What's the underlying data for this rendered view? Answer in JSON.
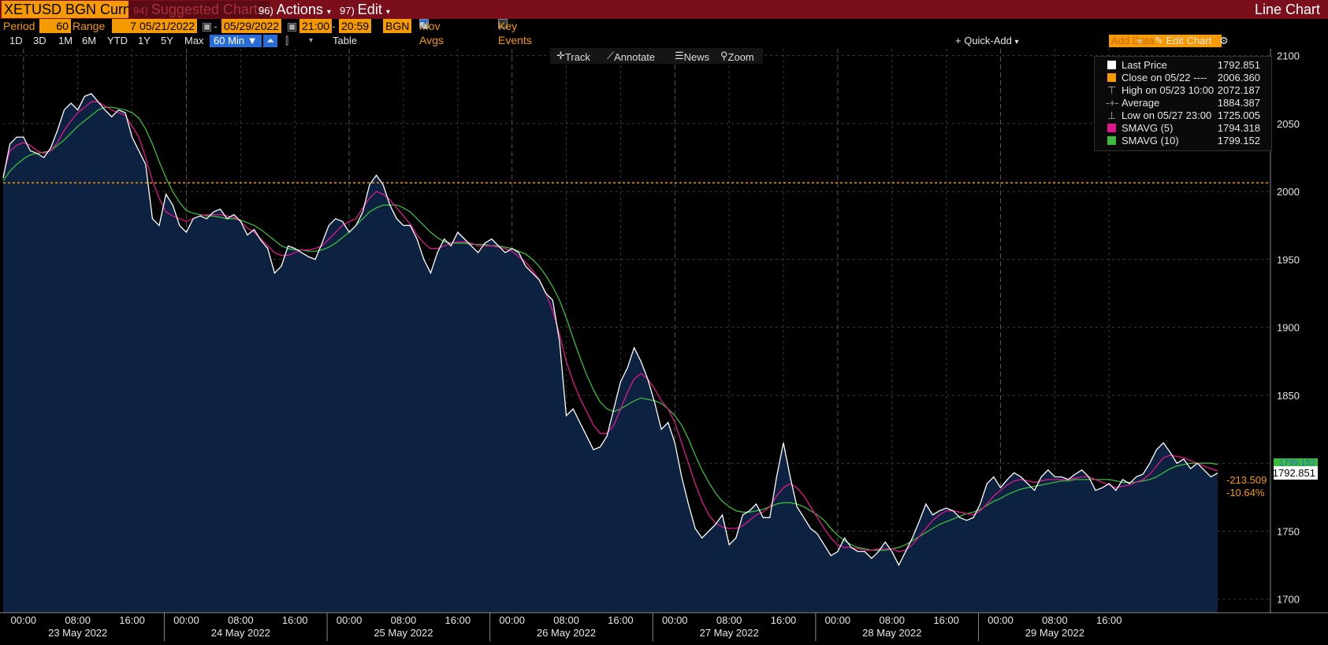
{
  "header": {
    "ticker": "XETUSD BGN Curncy",
    "suggested_num": "94)",
    "suggested": "Suggested Charts",
    "actions_num": "96)",
    "actions": "Actions",
    "edit_num": "97)",
    "edit": "Edit",
    "chart_type": "Line Chart"
  },
  "controls": {
    "period_label": "Period",
    "period_value": "60",
    "range_label": "Range",
    "range_value": "7",
    "start_date": "05/21/2022",
    "end_date": "05/29/2022",
    "start_time": "21:00",
    "end_time": "20:59",
    "source": "BGN",
    "mov_avgs": "Mov Avgs",
    "key_events": "Key Events"
  },
  "timeframes": [
    "1D",
    "3D",
    "1M",
    "6M",
    "YTD",
    "1Y",
    "5Y",
    "Max"
  ],
  "interval": "60 Min",
  "table_label": "Table",
  "quick_add": "+ Quick-Add",
  "add_data_placeholder": "Add Data",
  "edit_chart": "Edit Chart",
  "chart_toolbar": [
    "Track",
    "Annotate",
    "News",
    "Zoom"
  ],
  "legend": [
    {
      "name": "Last Price",
      "value": "1792.851",
      "color": "#ffffff"
    },
    {
      "name": "Close on 05/22 ----",
      "value": "2006.360",
      "color": "#f59a00"
    },
    {
      "name": "High on 05/23 10:00",
      "value": "2072.187",
      "color": ""
    },
    {
      "name": "Average",
      "value": "1884.387",
      "color": ""
    },
    {
      "name": "Low on 05/27 23:00",
      "value": "1725.005",
      "color": ""
    },
    {
      "name": "SMAVG (5)",
      "value": "1794.318",
      "color": "#e0178c"
    },
    {
      "name": "SMAVG (10)",
      "value": "1799.152",
      "color": "#3dbb3d"
    }
  ],
  "right_labels": {
    "last": "1792.851",
    "sma10_tag": "1799.152",
    "change": "-213.509",
    "change_pct": "-10.64%"
  },
  "chart_data": {
    "type": "line",
    "ylim": [
      1690,
      2105
    ],
    "yticks": [
      1700,
      1750,
      1800,
      1850,
      1900,
      1950,
      2000,
      2050,
      2100
    ],
    "x_time_labels": [
      "00:00",
      "08:00",
      "16:00"
    ],
    "days": [
      "23 May 2022",
      "24 May 2022",
      "25 May 2022",
      "26 May 2022",
      "27 May 2022",
      "28 May 2022",
      "29 May 2022"
    ],
    "reference_close": 2006.36,
    "series": [
      {
        "name": "Last Price",
        "color": "#ffffff",
        "values": [
          2010,
          2035,
          2040,
          2040,
          2030,
          2028,
          2025,
          2032,
          2045,
          2060,
          2065,
          2060,
          2070,
          2072,
          2066,
          2060,
          2055,
          2060,
          2058,
          2040,
          2030,
          2020,
          1980,
          1975,
          1998,
          1990,
          1975,
          1970,
          1980,
          1982,
          1980,
          1985,
          1987,
          1980,
          1983,
          1978,
          1968,
          1972,
          1964,
          1958,
          1940,
          1945,
          1960,
          1958,
          1955,
          1952,
          1950,
          1962,
          1975,
          1980,
          1978,
          1970,
          1975,
          1985,
          2005,
          2012,
          2005,
          1990,
          1980,
          1975,
          1975,
          1965,
          1950,
          1940,
          1955,
          1965,
          1960,
          1970,
          1965,
          1960,
          1955,
          1962,
          1965,
          1960,
          1955,
          1958,
          1955,
          1945,
          1940,
          1935,
          1925,
          1920,
          1890,
          1835,
          1840,
          1830,
          1820,
          1810,
          1812,
          1820,
          1840,
          1860,
          1870,
          1885,
          1875,
          1862,
          1845,
          1825,
          1830,
          1815,
          1790,
          1770,
          1752,
          1745,
          1750,
          1755,
          1762,
          1740,
          1745,
          1762,
          1765,
          1770,
          1760,
          1760,
          1790,
          1815,
          1790,
          1768,
          1760,
          1752,
          1748,
          1740,
          1732,
          1735,
          1745,
          1738,
          1735,
          1735,
          1730,
          1735,
          1742,
          1735,
          1725,
          1735,
          1745,
          1757,
          1770,
          1762,
          1765,
          1767,
          1765,
          1760,
          1758,
          1760,
          1770,
          1785,
          1790,
          1782,
          1788,
          1793,
          1790,
          1785,
          1780,
          1790,
          1795,
          1790,
          1790,
          1788,
          1792,
          1795,
          1790,
          1780,
          1782,
          1785,
          1780,
          1788,
          1785,
          1790,
          1792,
          1800,
          1810,
          1815,
          1808,
          1800,
          1803,
          1796,
          1800,
          1795,
          1790,
          1792.851
        ]
      },
      {
        "name": "SMAVG (5)",
        "color": "#e0178c",
        "values": [
          2012,
          2030,
          2034,
          2036,
          2034,
          2030,
          2028,
          2030,
          2036,
          2045,
          2052,
          2058,
          2062,
          2066,
          2066,
          2063,
          2060,
          2058,
          2056,
          2048,
          2040,
          2025,
          2008,
          1995,
          1985,
          1982,
          1980,
          1978,
          1980,
          1982,
          1983,
          1983,
          1983,
          1982,
          1981,
          1978,
          1973,
          1970,
          1965,
          1960,
          1955,
          1953,
          1953,
          1955,
          1957,
          1957,
          1958,
          1960,
          1965,
          1970,
          1975,
          1978,
          1980,
          1988,
          1995,
          2000,
          1998,
          1994,
          1988,
          1982,
          1976,
          1968,
          1962,
          1958,
          1958,
          1960,
          1962,
          1963,
          1963,
          1962,
          1960,
          1960,
          1960,
          1959,
          1958,
          1956,
          1952,
          1948,
          1942,
          1935,
          1925,
          1912,
          1895,
          1875,
          1860,
          1848,
          1838,
          1828,
          1822,
          1822,
          1828,
          1840,
          1852,
          1862,
          1866,
          1862,
          1855,
          1846,
          1840,
          1830,
          1815,
          1800,
          1785,
          1772,
          1762,
          1756,
          1753,
          1752,
          1752,
          1754,
          1758,
          1762,
          1764,
          1768,
          1776,
          1782,
          1785,
          1782,
          1776,
          1768,
          1760,
          1752,
          1745,
          1740,
          1738,
          1738,
          1737,
          1736,
          1736,
          1737,
          1737,
          1737,
          1735,
          1736,
          1740,
          1746,
          1752,
          1758,
          1762,
          1765,
          1765,
          1764,
          1763,
          1762,
          1765,
          1770,
          1776,
          1780,
          1784,
          1787,
          1788,
          1787,
          1786,
          1787,
          1788,
          1788,
          1788,
          1788,
          1789,
          1790,
          1790,
          1788,
          1786,
          1784,
          1782,
          1783,
          1784,
          1786,
          1788,
          1792,
          1798,
          1804,
          1806,
          1805,
          1804,
          1802,
          1800,
          1798,
          1796,
          1794.318
        ]
      },
      {
        "name": "SMAVG (10)",
        "color": "#3dbb3d",
        "values": [
          2008,
          2015,
          2020,
          2024,
          2027,
          2028,
          2029,
          2030,
          2034,
          2038,
          2043,
          2048,
          2052,
          2056,
          2060,
          2062,
          2062,
          2061,
          2060,
          2058,
          2054,
          2046,
          2035,
          2022,
          2010,
          2000,
          1992,
          1986,
          1984,
          1983,
          1982,
          1982,
          1981,
          1980,
          1980,
          1979,
          1977,
          1975,
          1972,
          1968,
          1964,
          1960,
          1958,
          1957,
          1957,
          1956,
          1956,
          1957,
          1959,
          1962,
          1966,
          1970,
          1975,
          1980,
          1985,
          1988,
          1990,
          1990,
          1990,
          1988,
          1985,
          1980,
          1975,
          1970,
          1966,
          1963,
          1962,
          1962,
          1962,
          1961,
          1961,
          1961,
          1960,
          1960,
          1959,
          1958,
          1956,
          1954,
          1950,
          1945,
          1938,
          1930,
          1920,
          1907,
          1892,
          1878,
          1865,
          1854,
          1845,
          1840,
          1838,
          1840,
          1843,
          1846,
          1848,
          1847,
          1846,
          1844,
          1840,
          1835,
          1828,
          1818,
          1806,
          1795,
          1786,
          1778,
          1772,
          1768,
          1765,
          1764,
          1764,
          1765,
          1766,
          1768,
          1770,
          1771,
          1771,
          1770,
          1768,
          1765,
          1762,
          1758,
          1752,
          1747,
          1743,
          1740,
          1738,
          1737,
          1736,
          1736,
          1736,
          1737,
          1738,
          1740,
          1743,
          1746,
          1749,
          1752,
          1755,
          1757,
          1759,
          1761,
          1763,
          1764,
          1766,
          1769,
          1772,
          1774,
          1777,
          1779,
          1781,
          1782,
          1783,
          1784,
          1785,
          1786,
          1787,
          1787,
          1788,
          1788,
          1788,
          1788,
          1788,
          1788,
          1787,
          1786,
          1786,
          1786,
          1787,
          1788,
          1790,
          1793,
          1796,
          1798,
          1799,
          1800,
          1800,
          1800,
          1800,
          1799.152
        ]
      }
    ]
  }
}
